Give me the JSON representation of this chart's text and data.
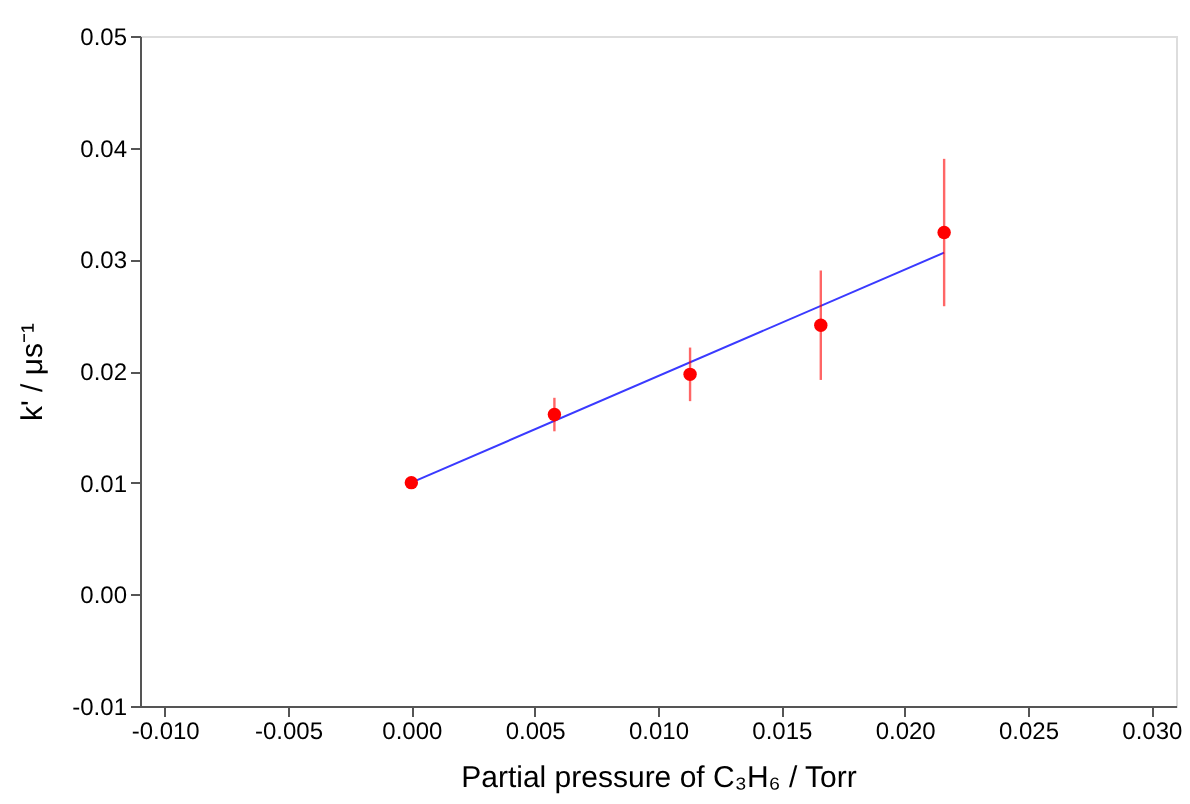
{
  "chart_data": {
    "type": "scatter",
    "xlabel": "Partial pressure of C₃H₆ / Torr",
    "ylabel": "k' / μs⁻¹",
    "xlim": [
      -0.011,
      0.031
    ],
    "ylim": [
      -0.01,
      0.05
    ],
    "xticks": [
      {
        "value": -0.01,
        "label": "-0.010"
      },
      {
        "value": -0.005,
        "label": "-0.005"
      },
      {
        "value": 0,
        "label": "0.000"
      },
      {
        "value": 0.005,
        "label": "0.005"
      },
      {
        "value": 0.01,
        "label": "0.010"
      },
      {
        "value": 0.015,
        "label": "0.015"
      },
      {
        "value": 0.02,
        "label": "0.020"
      },
      {
        "value": 0.025,
        "label": "0.025"
      },
      {
        "value": 0.03,
        "label": "0.030"
      }
    ],
    "yticks": [
      {
        "value": -0.01,
        "label": "-0.01"
      },
      {
        "value": 0,
        "label": "0.00"
      },
      {
        "value": 0.01,
        "label": "0.01"
      },
      {
        "value": 0.02,
        "label": "0.02"
      },
      {
        "value": 0.03,
        "label": "0.03"
      },
      {
        "value": 0.04,
        "label": "0.04"
      },
      {
        "value": 0.05,
        "label": "0.05"
      }
    ],
    "grid": false,
    "marker": "circle",
    "series": [
      {
        "type": "line",
        "color": "#3a3aff",
        "x": [
          0,
          0.0216
        ],
        "values": [
          0.01,
          0.0306
        ],
        "line_style": "solid",
        "marker": "none"
      },
      {
        "color": "#ff0000",
        "x": [
          0,
          0.0058,
          0.0113,
          0.0166,
          0.0216
        ],
        "values": [
          0.01,
          0.0161,
          0.0197,
          0.0241,
          0.0324
        ],
        "errors": [
          null,
          0.0015,
          0.0024,
          0.0049,
          0.0066
        ]
      }
    ]
  }
}
